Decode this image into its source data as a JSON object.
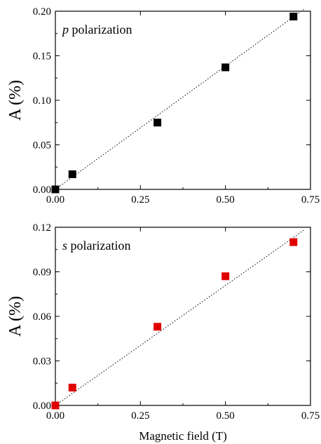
{
  "chart_data": [
    {
      "type": "scatter",
      "annotation": {
        "symbol": "p",
        "text": " polarization"
      },
      "xlabel": "",
      "ylabel": "A (%)",
      "xlim": [
        0,
        0.75
      ],
      "ylim": [
        0,
        0.2
      ],
      "xticks": [
        "0.00",
        "0.25",
        "0.50",
        "0.75"
      ],
      "yticks": [
        "0.00",
        "0.05",
        "0.10",
        "0.15",
        "0.20"
      ],
      "marker_color": "#000000",
      "fit_line": {
        "style": "dotted",
        "from": [
          0,
          0
        ],
        "to": [
          0.73,
          0.202
        ]
      },
      "series": [
        {
          "x": [
            0.0,
            0.05,
            0.3,
            0.5,
            0.7
          ],
          "y": [
            0.0,
            0.017,
            0.075,
            0.137,
            0.194
          ]
        }
      ]
    },
    {
      "type": "scatter",
      "annotation": {
        "symbol": "s",
        "text": " polarization"
      },
      "xlabel": "Magnetic field (T)",
      "ylabel": "A (%)",
      "xlim": [
        0,
        0.75
      ],
      "ylim": [
        0,
        0.12
      ],
      "xticks": [
        "0.00",
        "0.25",
        "0.50",
        "0.75"
      ],
      "yticks": [
        "0.00",
        "0.03",
        "0.06",
        "0.09",
        "0.12"
      ],
      "marker_color": "#e00000",
      "fit_line": {
        "style": "dotted",
        "from": [
          0,
          0
        ],
        "to": [
          0.73,
          0.118
        ]
      },
      "series": [
        {
          "x": [
            0.0,
            0.05,
            0.3,
            0.5,
            0.7
          ],
          "y": [
            0.0,
            0.012,
            0.053,
            0.087,
            0.11
          ]
        }
      ]
    }
  ]
}
